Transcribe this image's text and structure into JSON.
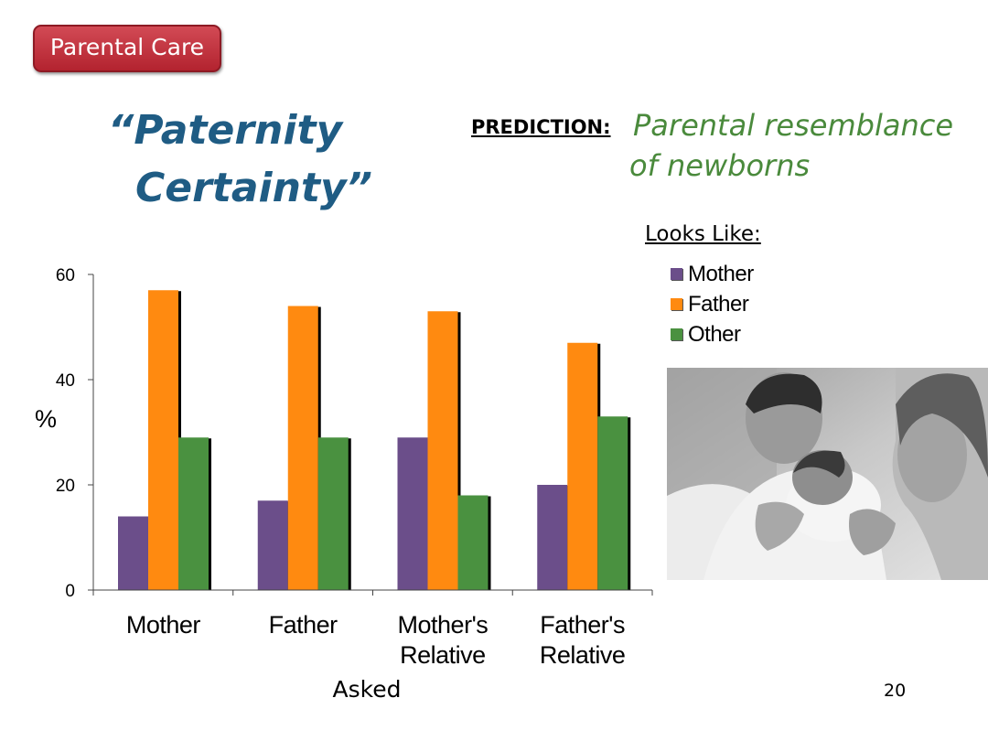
{
  "badge": {
    "label": "Parental Care"
  },
  "title": {
    "line1": "“Paternity",
    "line2": "Certainty”"
  },
  "prediction": {
    "label": "PREDICTION:",
    "line1": "Parental resemblance",
    "line2": "of newborns"
  },
  "legend": {
    "title": "Looks Like:",
    "items": [
      {
        "label": "Mother",
        "color": "#6b4e8a"
      },
      {
        "label": "Father",
        "color": "#ff8a10"
      },
      {
        "label": "Other",
        "color": "#4a9140"
      }
    ]
  },
  "chart_data": {
    "type": "bar",
    "categories": [
      [
        "Mother"
      ],
      [
        "Father"
      ],
      [
        "Mother's",
        "Relative"
      ],
      [
        "Father's",
        "Relative"
      ]
    ],
    "series": [
      {
        "name": "Mother",
        "values": [
          14,
          17,
          29,
          20
        ],
        "color": "#6b4e8a"
      },
      {
        "name": "Father",
        "values": [
          57,
          54,
          53,
          47
        ],
        "color": "#ff8a10"
      },
      {
        "name": "Other",
        "values": [
          29,
          29,
          18,
          33
        ],
        "color": "#4a9140"
      }
    ],
    "xlabel": "Asked",
    "ylabel": "%",
    "ylim": [
      0,
      60
    ],
    "yticks": [
      0,
      20,
      40,
      60
    ],
    "grid": false,
    "legend_position": "right"
  },
  "photo": {
    "icon": "family-newborn-photo"
  },
  "page_number": "20"
}
